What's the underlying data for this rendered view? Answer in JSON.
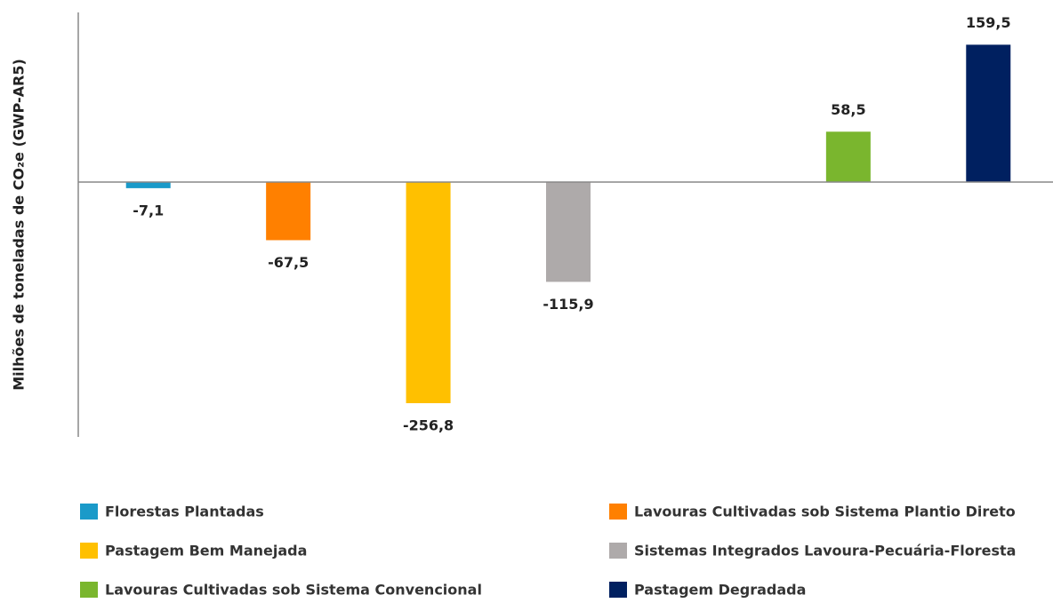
{
  "chart_data": {
    "type": "bar",
    "y_label": "Milhões de toneladas de CO₂e (GWP-AR5)",
    "categories": [
      "Florestas Plantadas",
      "Lavouras Cultivadas sob Sistema Plantio Direto",
      "Pastagem Bem Manejada",
      "Sistemas Integrados Lavoura-Pecuária-Floresta",
      null,
      "Lavouras Cultivadas sob Sistema Convencional",
      "Pastagem Degradada"
    ],
    "values": [
      -7.1,
      -67.5,
      -256.8,
      -115.9,
      null,
      58.5,
      159.5
    ],
    "value_labels": [
      "-7,1",
      "-67,5",
      "-256,8",
      "-115,9",
      null,
      "58,5",
      "159,5"
    ],
    "colors": [
      "#1a9ac9",
      "#ff8000",
      "#ffc000",
      "#aeaaaa",
      null,
      "#7ab62e",
      "#002060"
    ],
    "ylim": [
      -296,
      197
    ]
  }
}
